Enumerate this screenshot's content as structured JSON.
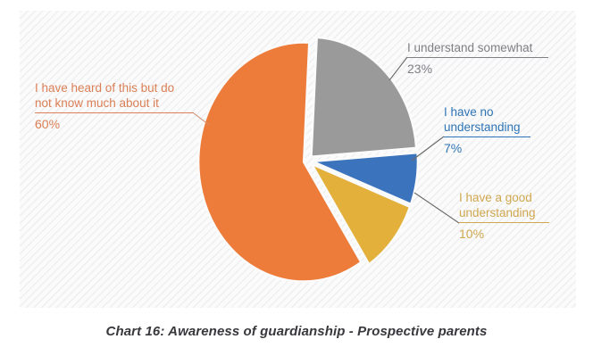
{
  "caption": "Chart 16: Awareness of guardianship - Prospective parents",
  "chart_data": {
    "type": "pie",
    "title": "Chart 16: Awareness of guardianship - Prospective parents",
    "direction": "clockwise",
    "start_angle_deg_from_top": 3,
    "exploded": true,
    "legend_position": "callout-labels",
    "total_pct": 100,
    "slices": [
      {
        "label": "I understand somewhat",
        "value_pct": 23,
        "pct_text": "23%",
        "color": "#9a9a9a",
        "label_color": "#7f7f84"
      },
      {
        "label": "I have no understanding",
        "value_pct": 7,
        "pct_text": "7%",
        "color": "#3b74bc",
        "label_color": "#2e74b5"
      },
      {
        "label": "I have a good understanding",
        "value_pct": 10,
        "pct_text": "10%",
        "color": "#e4b03c",
        "label_color": "#cfa74e"
      },
      {
        "label": "I have heard of this but do not know much about it",
        "value_pct": 60,
        "pct_text": "60%",
        "color": "#ed7c3b",
        "label_color": "#db7f55"
      }
    ],
    "leader_line_color": "#6b6b66",
    "panel_background": "#fbfbfc",
    "page_background": "#ffffff"
  }
}
